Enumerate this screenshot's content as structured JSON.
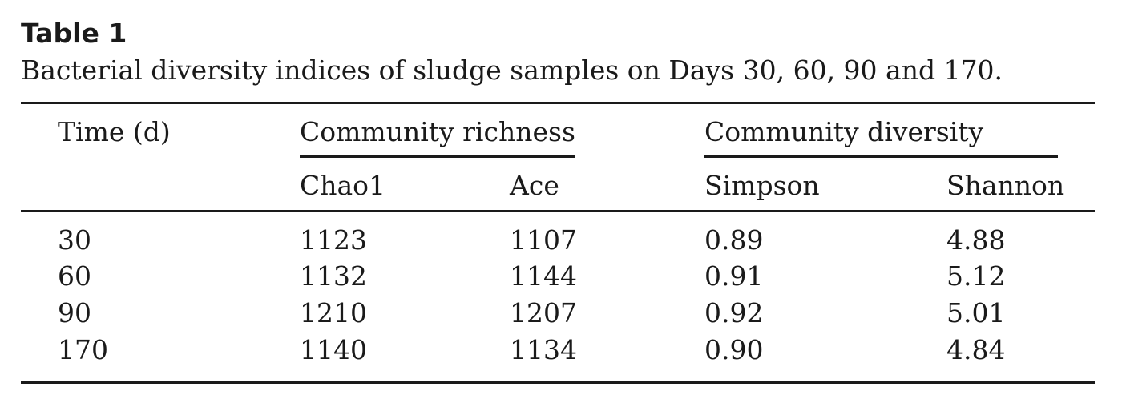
{
  "table": {
    "label": "Table 1",
    "caption": "Bacterial diversity indices of sludge samples on Days 30, 60, 90 and 170.",
    "header": {
      "time": "Time (d)",
      "group_richness": "Community richness",
      "group_diversity": "Community diversity",
      "columns": [
        "Chao1",
        "Ace",
        "Simpson",
        "Shannon"
      ]
    },
    "rows": [
      [
        "30",
        "1123",
        "1107",
        "0.89",
        "4.88"
      ],
      [
        "60",
        "1132",
        "1144",
        "0.91",
        "5.12"
      ],
      [
        "90",
        "1210",
        "1207",
        "0.92",
        "5.01"
      ],
      [
        "170",
        "1140",
        "1134",
        "0.90",
        "4.84"
      ]
    ]
  }
}
